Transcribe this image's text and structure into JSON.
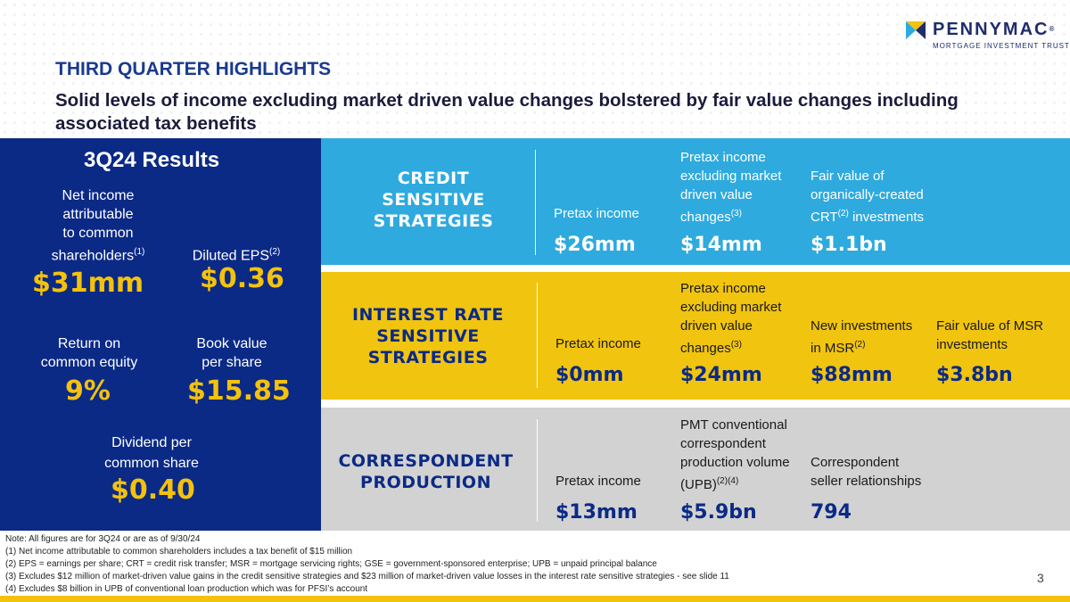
{
  "logo": {
    "brand": "PENNYMAC",
    "tagline": "MORTGAGE INVESTMENT TRUST",
    "registered": "®"
  },
  "title": "THIRD QUARTER HIGHLIGHTS",
  "subtitle": "Solid levels of income excluding market driven value changes bolstered by fair value changes including associated tax benefits",
  "results": {
    "heading": "3Q24 Results",
    "net_income": {
      "label_lines": [
        "Net income",
        "attributable",
        "to common",
        "shareholders"
      ],
      "sup": "(1)",
      "value": "$31mm"
    },
    "eps": {
      "label": "Diluted EPS",
      "sup": "(2)",
      "value": "$0.36"
    },
    "roe": {
      "label_lines": [
        "Return on",
        "common equity"
      ],
      "value": "9%"
    },
    "book": {
      "label_lines": [
        "Book value",
        "per share"
      ],
      "value": "$15.85"
    },
    "dividend": {
      "label_lines": [
        "Dividend per",
        "common share"
      ],
      "value": "$0.40"
    }
  },
  "credit": {
    "name_lines": [
      "CREDIT",
      "SENSITIVE",
      "STRATEGIES"
    ],
    "metrics": [
      {
        "label_lines": [
          "Pretax income"
        ],
        "value": "$26mm"
      },
      {
        "label_lines": [
          "Pretax income",
          "excluding market",
          "driven value",
          "changes"
        ],
        "sup": "(3)",
        "value": "$14mm"
      },
      {
        "label_lines": [
          "Fair value of",
          "organically-created",
          "CRT",
          " investments"
        ],
        "sup": "(2)",
        "value": "$1.1bn"
      }
    ]
  },
  "interest": {
    "name_lines": [
      "INTEREST RATE",
      "SENSITIVE",
      "STRATEGIES"
    ],
    "metrics": [
      {
        "label_lines": [
          "Pretax income"
        ],
        "value": "$0mm"
      },
      {
        "label_lines": [
          "Pretax income",
          "excluding market",
          "driven value",
          "changes"
        ],
        "sup": "(3)",
        "value": "$24mm"
      },
      {
        "label_lines": [
          "New investments",
          "in MSR"
        ],
        "sup": "(2)",
        "value": "$88mm"
      },
      {
        "label_lines": [
          "Fair value of MSR",
          "investments"
        ],
        "value": "$3.8bn"
      }
    ]
  },
  "correspondent": {
    "name_lines": [
      "CORRESPONDENT",
      "PRODUCTION"
    ],
    "metrics": [
      {
        "label_lines": [
          "Pretax income"
        ],
        "value": "$13mm"
      },
      {
        "label_lines": [
          "PMT conventional",
          "correspondent",
          "production volume",
          "(UPB)"
        ],
        "sup": "(2)(4)",
        "value": "$5.9bn"
      },
      {
        "label_lines": [
          "Correspondent",
          "seller relationships"
        ],
        "value": "794"
      }
    ]
  },
  "footnotes": [
    "Note: All figures are for 3Q24 or are as of 9/30/24",
    "(1) Net income attributable to common shareholders includes a tax benefit of $15 million",
    "(2) EPS = earnings per share; CRT = credit risk transfer; MSR = mortgage servicing rights; GSE = government-sponsored enterprise; UPB = unpaid principal balance",
    "(3) Excludes $12 million of market-driven value gains in the credit sensitive strategies and $23 million of market-driven value losses in the interest rate sensitive strategies - see slide 11",
    "(4) Excludes $8 billion in UPB of conventional loan production which was for PFSI’s account"
  ],
  "page_number": "3",
  "colors": {
    "navy": "#0b2a86",
    "sky": "#2eaadf",
    "gold": "#f1c40f",
    "gray": "#d2d2d2",
    "yellow_text": "#f4c20d"
  }
}
